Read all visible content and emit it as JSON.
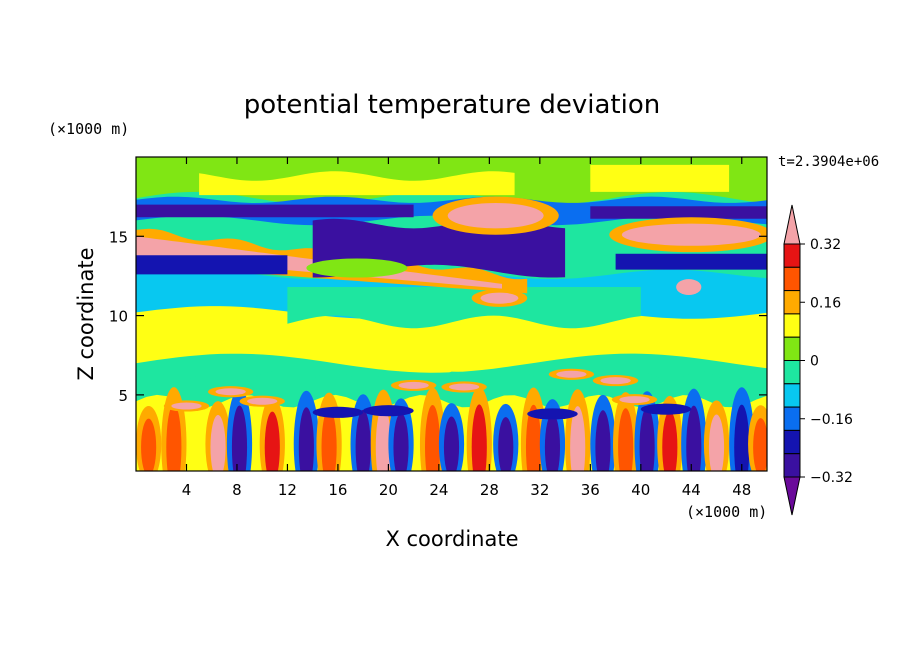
{
  "chart_data": {
    "type": "heatmap",
    "title": "potential temperature deviation",
    "xlabel": "X coordinate",
    "ylabel": "Z coordinate",
    "x_unit": "(×1000 m)",
    "y_unit": "(×1000 m)",
    "time_label": "t=2.3904e+06",
    "xlim": [
      0,
      50
    ],
    "ylim": [
      0.2,
      20
    ],
    "x_ticks": [
      4,
      8,
      12,
      16,
      20,
      24,
      28,
      32,
      36,
      40,
      44,
      48
    ],
    "y_ticks": [
      5,
      10,
      15
    ],
    "colorbar": {
      "levels": [
        -0.4,
        -0.32,
        -0.24,
        -0.16,
        -0.08,
        0,
        0.08,
        0.16,
        0.24,
        0.32,
        0.4
      ],
      "tick_labels": [
        "0.32",
        "0.16",
        "0",
        "−0.16",
        "−0.32"
      ],
      "tick_values": [
        0.32,
        0.16,
        0,
        -0.16,
        -0.32
      ],
      "colors": [
        "#6a0a9a",
        "#3a10a0",
        "#1414b0",
        "#0a6ef0",
        "#08c8f0",
        "#1ee6a0",
        "#80e614",
        "#ffff14",
        "#ffaa00",
        "#ff5500",
        "#e61414",
        "#f4a3a8"
      ],
      "extend": "both"
    },
    "background_level_color": "#1ee6a0",
    "features": [
      {
        "name": "upper cold band",
        "value": -0.35,
        "x_range": [
          0,
          50
        ],
        "z": [
          16.2,
          17.2
        ]
      },
      {
        "name": "upper warm band",
        "value": 0.42,
        "x_range": [
          0,
          30
        ],
        "z": [
          13.5,
          15.0
        ]
      },
      {
        "name": "warm lobe",
        "value": 0.42,
        "x_range": [
          26,
          31
        ],
        "z": [
          15.0,
          17.0
        ]
      },
      {
        "name": "warm lobe east",
        "value": 0.42,
        "x_range": [
          38,
          50
        ],
        "z": [
          14.5,
          15.8
        ]
      },
      {
        "name": "cold core",
        "value": -0.4,
        "x_range": [
          14,
          34
        ],
        "z": [
          12.5,
          15.5
        ]
      },
      {
        "name": "warm blob",
        "value": 0.42,
        "x_range": [
          26,
          30
        ],
        "z": [
          10.8,
          11.5
        ]
      },
      {
        "name": "warm blob",
        "value": 0.42,
        "x_range": [
          43,
          45
        ],
        "z": [
          11.5,
          12.3
        ]
      },
      {
        "name": "lower band turbulence",
        "value_range": [
          -0.4,
          0.42
        ],
        "x_range": [
          0,
          50
        ],
        "z": [
          0.2,
          6.5
        ]
      }
    ]
  }
}
